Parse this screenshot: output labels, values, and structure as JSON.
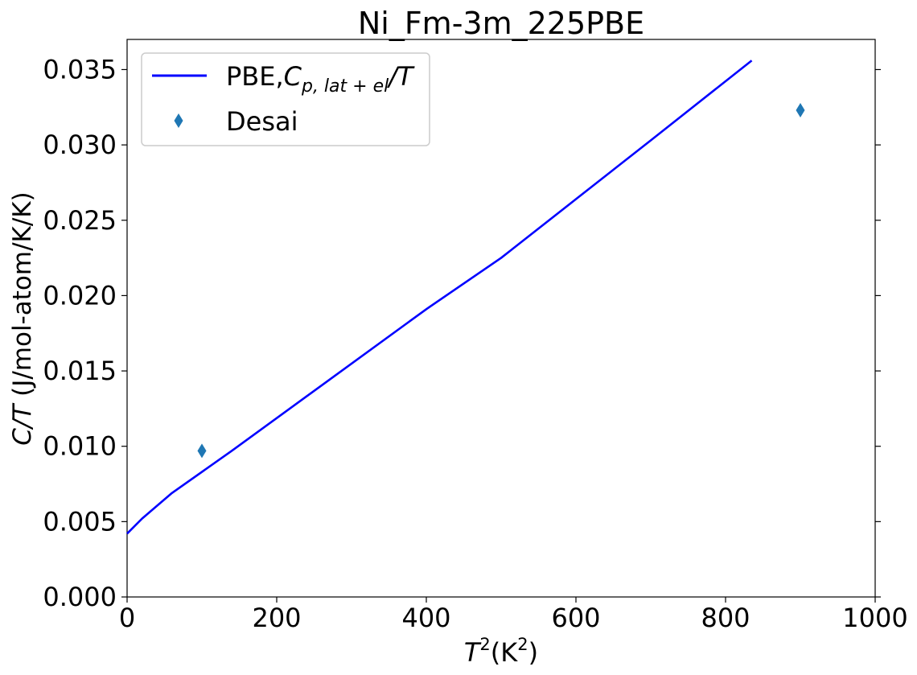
{
  "chart_data": {
    "type": "line",
    "title": "Ni_Fm-3m_225PBE",
    "xlabel": {
      "base": "T",
      "sup": "2",
      "mid": "(K",
      "sup2": "2",
      "end": ")"
    },
    "ylabel": {
      "italic": "C/T",
      "rest": " (J/mol-atom/K/K)"
    },
    "xlim": [
      0,
      1000
    ],
    "ylim": [
      0,
      0.037
    ],
    "xticks": [
      0,
      200,
      400,
      600,
      800,
      1000
    ],
    "xtick_labels": [
      "0",
      "200",
      "400",
      "600",
      "800",
      "1000"
    ],
    "yticks": [
      0,
      0.005,
      0.01,
      0.015,
      0.02,
      0.025,
      0.03,
      0.035
    ],
    "ytick_labels": [
      "0.000",
      "0.005",
      "0.010",
      "0.015",
      "0.020",
      "0.025",
      "0.030",
      "0.035"
    ],
    "grid": false,
    "legend_position": "top-left",
    "series": [
      {
        "name": "PBE,C_{p,lat+el}/T",
        "legend_parts": {
          "pre": "PBE,",
          "c": "C",
          "sub": "p, lat + el",
          "post": "/T"
        },
        "kind": "line",
        "color": "#0000ff",
        "x": [
          0,
          20,
          60,
          140,
          270,
          400,
          500,
          600,
          700,
          835
        ],
        "y": [
          0.0042,
          0.0052,
          0.0069,
          0.0097,
          0.0144,
          0.0191,
          0.0225,
          0.0264,
          0.0303,
          0.0356
        ]
      },
      {
        "name": "Desai",
        "kind": "scatter",
        "marker": "thin-diamond",
        "color": "#1f77b4",
        "x": [
          100,
          900
        ],
        "y": [
          0.0097,
          0.0323
        ]
      }
    ]
  }
}
